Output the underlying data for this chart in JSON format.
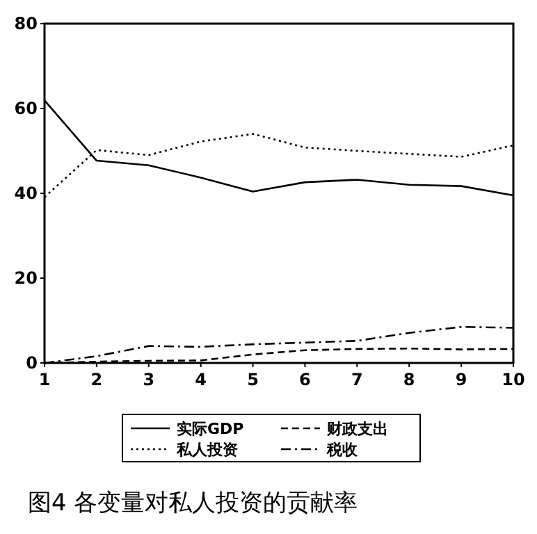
{
  "chart_data": {
    "type": "line",
    "title": "图4 各变量对私人投资的贡献率",
    "x": [
      1,
      2,
      3,
      4,
      5,
      6,
      7,
      8,
      9,
      10
    ],
    "xlim": [
      1,
      10
    ],
    "xticks": [
      1,
      2,
      3,
      4,
      5,
      6,
      7,
      8,
      9,
      10
    ],
    "ylim": [
      0,
      80
    ],
    "yticks": [
      0,
      20,
      40,
      60,
      80
    ],
    "grid": false,
    "legend": "bottom",
    "series": [
      {
        "name": "实际GDP",
        "color": "#000000",
        "line_style": "solid",
        "values": [
          61.9,
          47.7,
          46.6,
          43.7,
          40.4,
          42.6,
          43.2,
          42,
          41.7,
          39.5
        ]
      },
      {
        "name": "私人投资",
        "color": "#000000",
        "line_style": "dotted",
        "values": [
          39.1,
          50.2,
          49,
          52.2,
          54,
          50.8,
          50,
          49.3,
          48.6,
          51.3
        ]
      },
      {
        "name": "财政支出",
        "color": "#000000",
        "line_style": "dashed",
        "values": [
          0,
          0.3,
          0.5,
          0.6,
          2,
          3,
          3.3,
          3.4,
          3.2,
          3.3
        ]
      },
      {
        "name": "税收",
        "color": "#000000",
        "line_style": "dashdot",
        "values": [
          0,
          1.6,
          4,
          3.8,
          4.4,
          4.8,
          5.2,
          7.1,
          8.5,
          8.3
        ]
      }
    ]
  }
}
